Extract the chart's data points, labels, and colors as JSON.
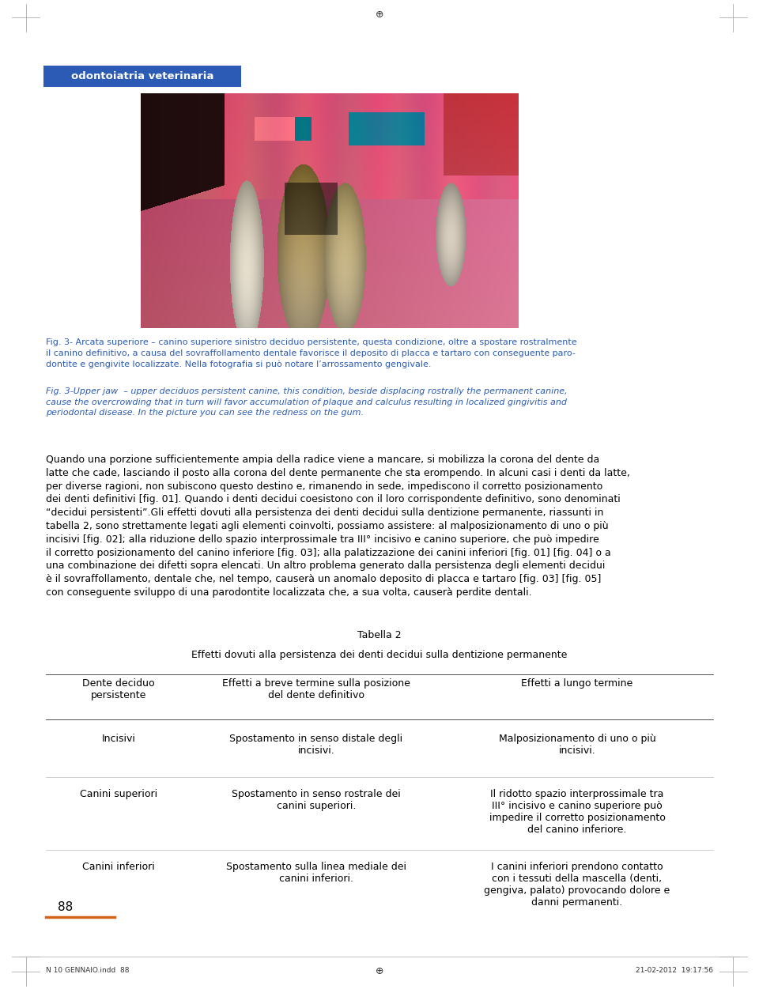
{
  "bg_color": "#ffffff",
  "page_width": 9.6,
  "page_height": 12.51,
  "header_bar_color": "#2b5bb5",
  "header_bar_text": "odontoiatria veterinaria",
  "header_bar_text_color": "#ffffff",
  "caption_ita_text": "Fig. 3- Arcata superiore – canino superiore sinistro deciduo persistente, questa condizione, oltre a spostare rostralmente\nil canino definitivo, a causa del sovraffollamento dentale favorisce il deposito di placca e tartaro con conseguente paro-\ndontite e gengivite localizzate. Nella fotografia si può notare l’arrossamento gengivale.",
  "caption_ita_color": "#2b5bb5",
  "caption_ita_fontsize": 8.0,
  "caption_eng_text": "Fig. 3-Upper jaw  – upper deciduos persistent canine, this condition, beside displacing rostrally the permanent canine,\ncause the overcrowding that in turn will favor accumulation of plaque and calculus resulting in localized gingivitis and\nperiodontal disease. In the picture you can see the redness on the gum.",
  "caption_eng_color": "#2b5bb5",
  "caption_eng_fontsize": 8.0,
  "body_text": "Quando una porzione sufficientemente ampia della radice viene a mancare, si mobilizza la corona del dente da\nlatte che cade, lasciando il posto alla corona del dente permanente che sta erompendo. In alcuni casi i denti da latte,\nper diverse ragioni, non subiscono questo destino e, rimanendo in sede, impediscono il corretto posizionamento\ndei denti definitivi [fig. 01]. Quando i denti decidui coesistono con il loro corrispondente definitivo, sono denominati\n“decidui persistenti”.Gli effetti dovuti alla persistenza dei denti decidui sulla dentizione permanente, riassunti in\ntabella 2, sono strettamente legati agli elementi coinvolti, possiamo assistere: al malposizionamento di uno o più\nincisivi [fig. 02]; alla riduzione dello spazio interprossimale tra III° incisivo e canino superiore, che può impedire\nil corretto posizionamento del canino inferiore [fig. 03]; alla palatizzazione dei canini inferiori [fig. 01] [fig. 04] o a\nuna combinazione dei difetti sopra elencati. Un altro problema generato dalla persistenza degli elementi decidui\nè il sovraffollamento, dentale che, nel tempo, causerà un anomalo deposito di placca e tartaro [fig. 03] [fig. 05]\ncon conseguente sviluppo di una parodontite localizzata che, a sua volta, causerà perdite dentali.",
  "body_fontsize": 9.0,
  "body_color": "#000000",
  "table_title": "Tabella 2",
  "table_subtitle": "Effetti dovuti alla persistenza dei denti decidui sulla dentizione permanente",
  "table_fontsize": 9.0,
  "table_color": "#000000",
  "col1_header": "Dente deciduo\npersistente",
  "col2_header": "Effetti a breve termine sulla posizione\ndel dente definitivo",
  "col3_header": "Effetti a lungo termine",
  "row1_col1": "Incisivi",
  "row1_col2": "Spostamento in senso distale degli\nincisivi.",
  "row1_col3": "Malposizionamento di uno o più\nincisivi.",
  "row2_col1": "Canini superiori",
  "row2_col2": "Spostamento in senso rostrale dei\ncanini superiori.",
  "row2_col3": "Il ridotto spazio interprossimale tra\nIII° incisivo e canino superiore può\nimpedire il corretto posizionamento\ndel canino inferiore.",
  "row3_col1": "Canini inferiori",
  "row3_col2": "Spostamento sulla linea mediale dei\ncanini inferiori.",
  "row3_col3": "I canini inferiori prendono contatto\ncon i tessuti della mascella (denti,\ngengiva, palato) provocando dolore e\ndanni permanenti.",
  "page_number": "88",
  "orange_line_color": "#d4641a",
  "footer_left": "N 10 GENNAIO.indd  88",
  "footer_right": "21-02-2012  19:17:56",
  "footer_fontsize": 6.5,
  "crop_mark_color": "#aaaaaa"
}
